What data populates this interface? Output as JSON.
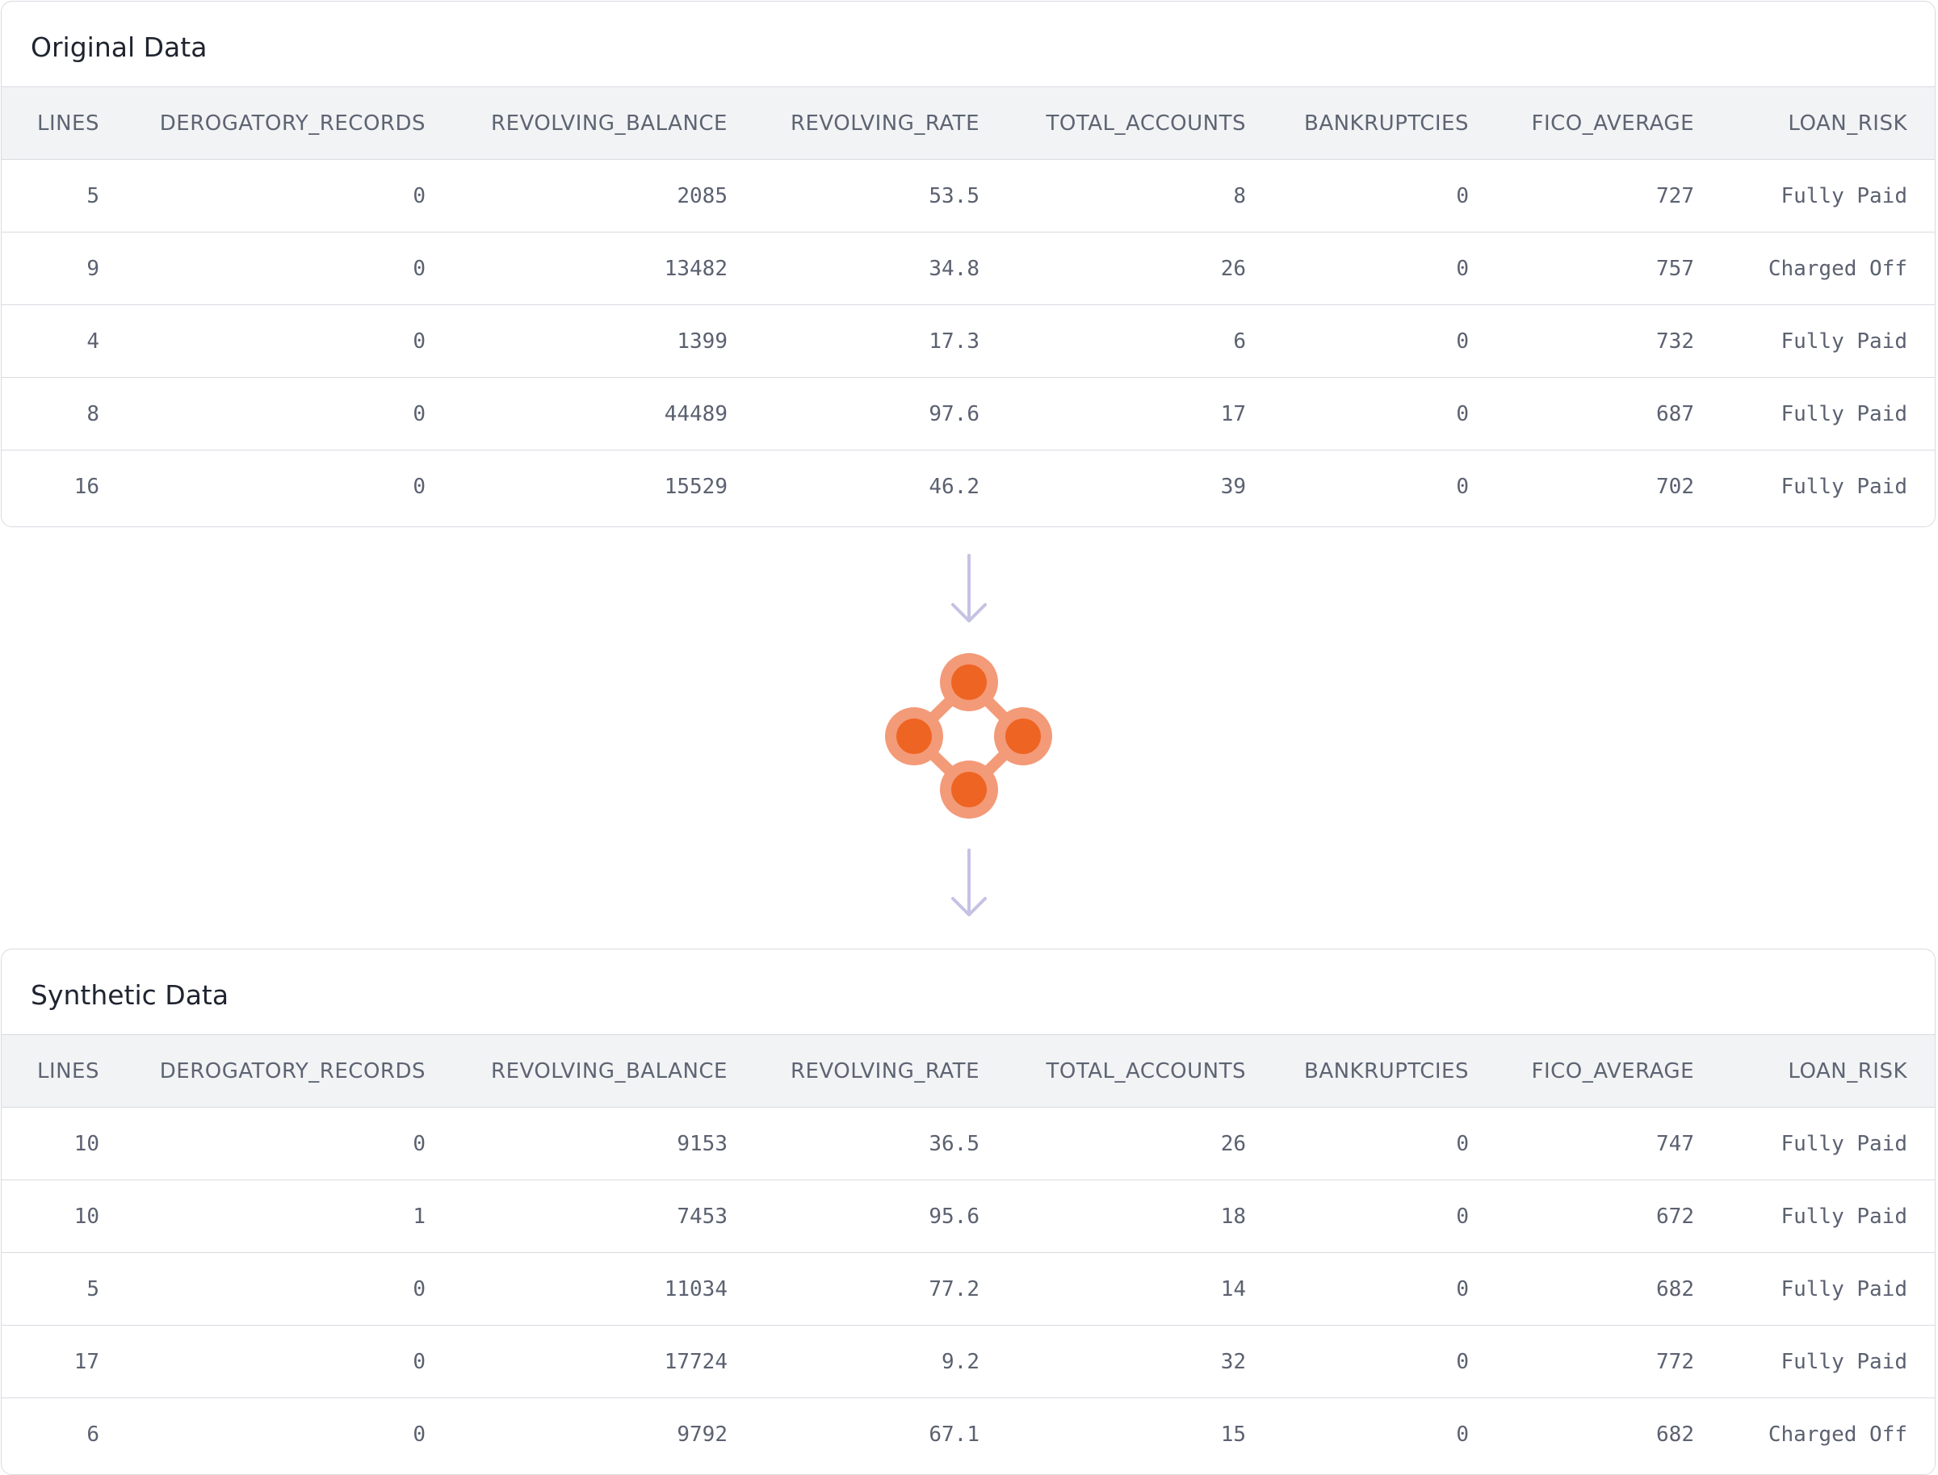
{
  "original": {
    "title": "Original Data",
    "columns": [
      "LINES",
      "DEROGATORY_RECORDS",
      "REVOLVING_BALANCE",
      "REVOLVING_RATE",
      "TOTAL_ACCOUNTS",
      "BANKRUPTCIES",
      "FICO_AVERAGE",
      "LOAN_RISK"
    ],
    "rows": [
      [
        "5",
        "0",
        "2085",
        "53.5",
        "8",
        "0",
        "727",
        "Fully Paid"
      ],
      [
        "9",
        "0",
        "13482",
        "34.8",
        "26",
        "0",
        "757",
        "Charged Off"
      ],
      [
        "4",
        "0",
        "1399",
        "17.3",
        "6",
        "0",
        "732",
        "Fully Paid"
      ],
      [
        "8",
        "0",
        "44489",
        "97.6",
        "17",
        "0",
        "687",
        "Fully Paid"
      ],
      [
        "16",
        "0",
        "15529",
        "46.2",
        "39",
        "0",
        "702",
        "Fully Paid"
      ]
    ]
  },
  "synthetic": {
    "title": "Synthetic Data",
    "columns": [
      "LINES",
      "DEROGATORY_RECORDS",
      "REVOLVING_BALANCE",
      "REVOLVING_RATE",
      "TOTAL_ACCOUNTS",
      "BANKRUPTCIES",
      "FICO_AVERAGE",
      "LOAN_RISK"
    ],
    "rows": [
      [
        "10",
        "0",
        "9153",
        "36.5",
        "26",
        "0",
        "747",
        "Fully Paid"
      ],
      [
        "10",
        "1",
        "7453",
        "95.6",
        "18",
        "0",
        "672",
        "Fully Paid"
      ],
      [
        "5",
        "0",
        "11034",
        "77.2",
        "14",
        "0",
        "682",
        "Fully Paid"
      ],
      [
        "17",
        "0",
        "17724",
        "9.2",
        "32",
        "0",
        "772",
        "Fully Paid"
      ],
      [
        "6",
        "0",
        "9792",
        "67.1",
        "15",
        "0",
        "682",
        "Charged Off"
      ]
    ]
  },
  "colors": {
    "arrow": "#c5c2e4",
    "node_outer": "#f39a78",
    "node_inner": "#ee6422",
    "edge": "#f39a78"
  },
  "icons": {
    "flow_down": "arrow-down-icon",
    "generator": "network-nodes-icon"
  }
}
